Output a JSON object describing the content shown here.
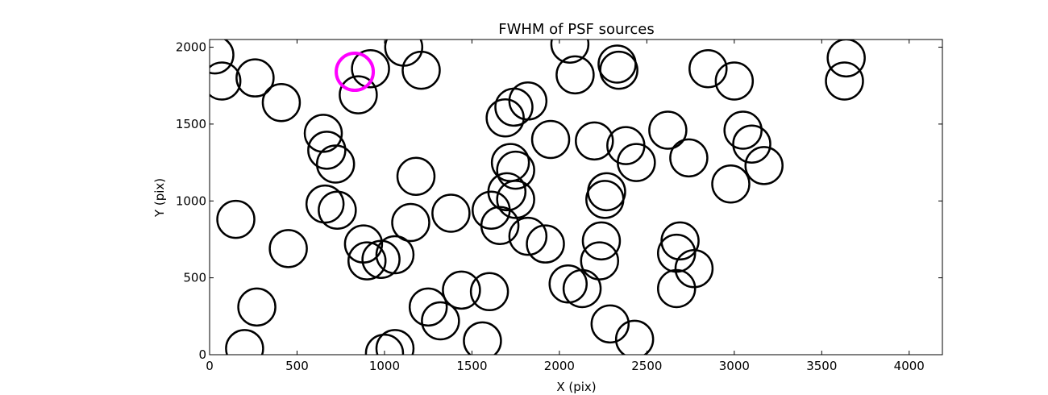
{
  "chart_data": {
    "type": "scatter",
    "title": "FWHM of PSF sources",
    "xlabel": "X (pix)",
    "ylabel": "Y (pix)",
    "xlim": [
      0,
      4190
    ],
    "ylim": [
      0,
      2050
    ],
    "xticks": [
      0,
      500,
      1000,
      1500,
      2000,
      2500,
      3000,
      3500,
      4000
    ],
    "yticks": [
      0,
      500,
      1000,
      1500,
      2000
    ],
    "grid": false,
    "marker": "open-circle",
    "series": [
      {
        "color": "#000000",
        "points": [
          [
            30,
            1950
          ],
          [
            70,
            1780
          ],
          [
            260,
            1800
          ],
          [
            410,
            1640
          ],
          [
            150,
            880
          ],
          [
            450,
            690
          ],
          [
            270,
            310
          ],
          [
            200,
            40
          ],
          [
            650,
            1440
          ],
          [
            670,
            1330
          ],
          [
            720,
            1240
          ],
          [
            660,
            980
          ],
          [
            730,
            940
          ],
          [
            850,
            1690
          ],
          [
            920,
            1860
          ],
          [
            1110,
            2000
          ],
          [
            1210,
            1850
          ],
          [
            1180,
            1160
          ],
          [
            1150,
            860
          ],
          [
            880,
            720
          ],
          [
            900,
            610
          ],
          [
            980,
            620
          ],
          [
            1060,
            650
          ],
          [
            1000,
            10
          ],
          [
            1060,
            40
          ],
          [
            1250,
            310
          ],
          [
            1320,
            220
          ],
          [
            1440,
            420
          ],
          [
            1600,
            410
          ],
          [
            1560,
            90
          ],
          [
            1380,
            920
          ],
          [
            1610,
            940
          ],
          [
            1660,
            840
          ],
          [
            1690,
            1540
          ],
          [
            1740,
            1610
          ],
          [
            1820,
            1650
          ],
          [
            1720,
            1250
          ],
          [
            1750,
            1200
          ],
          [
            1700,
            1060
          ],
          [
            1750,
            1010
          ],
          [
            1820,
            770
          ],
          [
            1920,
            720
          ],
          [
            1950,
            1400
          ],
          [
            2060,
            2020
          ],
          [
            2090,
            1820
          ],
          [
            2200,
            1390
          ],
          [
            2380,
            1360
          ],
          [
            2440,
            1250
          ],
          [
            2270,
            1060
          ],
          [
            2260,
            1010
          ],
          [
            2240,
            740
          ],
          [
            2230,
            610
          ],
          [
            2050,
            460
          ],
          [
            2130,
            430
          ],
          [
            2290,
            200
          ],
          [
            2430,
            100
          ],
          [
            2330,
            1890
          ],
          [
            2340,
            1850
          ],
          [
            2620,
            1460
          ],
          [
            2740,
            1280
          ],
          [
            2850,
            1860
          ],
          [
            3000,
            1780
          ],
          [
            3050,
            1460
          ],
          [
            3100,
            1370
          ],
          [
            3170,
            1230
          ],
          [
            2980,
            1110
          ],
          [
            2690,
            740
          ],
          [
            2670,
            660
          ],
          [
            2770,
            560
          ],
          [
            2670,
            430
          ],
          [
            3640,
            1930
          ],
          [
            3630,
            1780
          ]
        ]
      },
      {
        "color": "#ff00ff",
        "points": [
          [
            830,
            1840
          ]
        ]
      }
    ]
  }
}
